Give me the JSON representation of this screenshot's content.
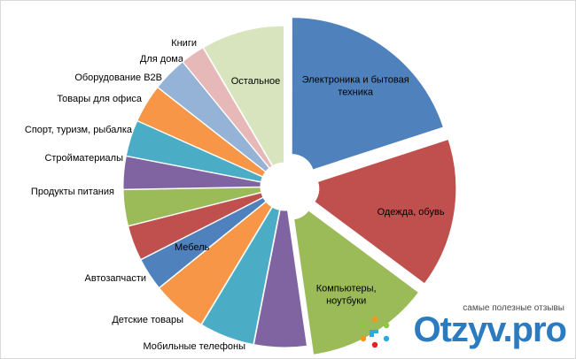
{
  "chart_data": {
    "type": "pie",
    "title": "",
    "legend": "none",
    "slices": [
      {
        "label": "Электроника и бытовая техника",
        "value": 18.0,
        "color": "#4f81bd"
      },
      {
        "label": "Одежда, обувь",
        "value": 13.7,
        "color": "#c0504d"
      },
      {
        "label": "Компьютеры, ноутбуки",
        "value": 11.3,
        "color": "#9bbb59"
      },
      {
        "label": "Мобильные телефоны",
        "value": 4.8,
        "color": "#8064a2"
      },
      {
        "label": "Детские товары",
        "value": 5.0,
        "color": "#4bacc6"
      },
      {
        "label": "Автозапчасти",
        "value": 5.0,
        "color": "#f79646"
      },
      {
        "label": "Мебель",
        "value": 3.0,
        "color": "#4f81bd"
      },
      {
        "label": "Продукты питания",
        "value": 3.2,
        "color": "#c0504d"
      },
      {
        "label": "Стройматериалы",
        "value": 3.3,
        "color": "#9bbb59"
      },
      {
        "label": "Спорт, туризм, рыбалка",
        "value": 3.0,
        "color": "#8064a2"
      },
      {
        "label": "Товары для офиса",
        "value": 3.3,
        "color": "#4bacc6"
      },
      {
        "label": "Оборудование B2B",
        "value": 3.5,
        "color": "#f79646"
      },
      {
        "label": "Для дома",
        "value": 3.2,
        "color": "#95b3d7"
      },
      {
        "label": "Книги",
        "value": 2.2,
        "color": "#e6b9b8"
      },
      {
        "label": "Остальное",
        "value": 7.6,
        "color": "#d7e4bd"
      }
    ]
  },
  "watermark": {
    "tagline": "самые полезные отзывы",
    "brand": "Otzyv.pro",
    "brand_color": "#2a7bbf",
    "logo_icon": "people-circle-icon"
  }
}
